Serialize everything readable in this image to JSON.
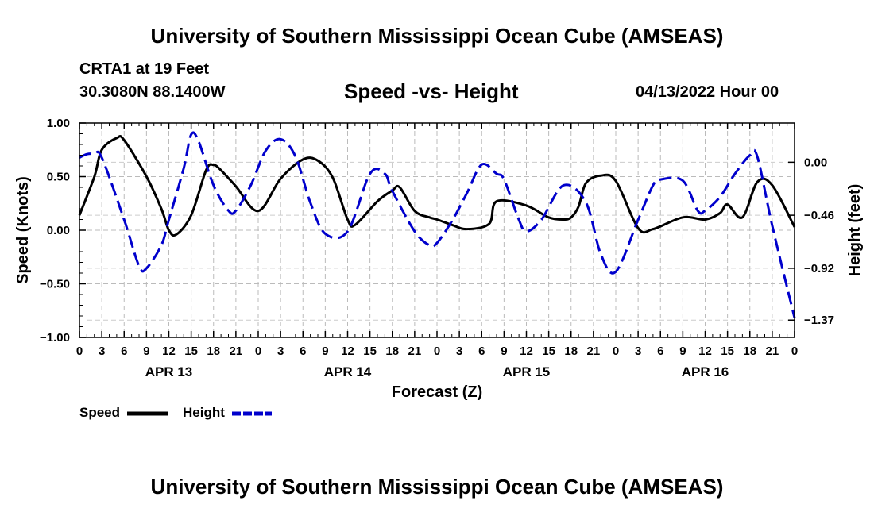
{
  "title": "University of Southern Mississippi Ocean Cube (AMSEAS)",
  "bottom_title": "University of Southern Mississippi Ocean Cube (AMSEAS)",
  "station": "CRTA1 at 19 Feet",
  "coordinates": "30.3080N  88.1400W",
  "plot_title": "Speed -vs- Height",
  "datetime": "04/13/2022 Hour 00",
  "chart_data": {
    "type": "line",
    "title": "Speed -vs- Height",
    "xlabel": "Forecast (Z)",
    "ylabel": "Speed (Knots)",
    "y2label": "Height (feet)",
    "xlim": [
      0,
      96
    ],
    "ylim": [
      -1.0,
      1.0
    ],
    "y2lim": [
      -1.52,
      0.34
    ],
    "grid": true,
    "x_ticks": [
      0,
      3,
      6,
      9,
      12,
      15,
      18,
      21,
      24,
      27,
      30,
      33,
      36,
      39,
      42,
      45,
      48,
      51,
      54,
      57,
      60,
      63,
      66,
      69,
      72,
      75,
      78,
      81,
      84,
      87,
      90,
      93,
      96
    ],
    "x_tick_labels": [
      "0",
      "3",
      "6",
      "9",
      "12",
      "15",
      "18",
      "21",
      "0",
      "3",
      "6",
      "9",
      "12",
      "15",
      "18",
      "21",
      "0",
      "3",
      "6",
      "9",
      "12",
      "15",
      "18",
      "21",
      "0",
      "3",
      "6",
      "9",
      "12",
      "15",
      "18",
      "21",
      "0"
    ],
    "date_labels": [
      {
        "x": 12,
        "label": "APR 13"
      },
      {
        "x": 36,
        "label": "APR 14"
      },
      {
        "x": 60,
        "label": "APR 15"
      },
      {
        "x": 84,
        "label": "APR 16"
      }
    ],
    "y_ticks": [
      -1.0,
      -0.5,
      0.0,
      0.5,
      1.0
    ],
    "y_tick_labels": [
      "−1.00",
      "−0.50",
      "0.00",
      "0.50",
      "1.00"
    ],
    "y2_ticks": [
      0.0,
      -0.46,
      -0.92,
      -1.37
    ],
    "y2_tick_labels": [
      "0.00",
      "−0.46",
      "−0.92",
      "−1.37"
    ],
    "legend": [
      {
        "name": "Speed",
        "color": "#000000",
        "dash": "solid"
      },
      {
        "name": "Height",
        "color": "#0000cc",
        "dash": "dashed"
      }
    ],
    "series": [
      {
        "name": "Speed",
        "axis": "left",
        "color": "#000000",
        "x": [
          0,
          2,
          3,
          5,
          6,
          9,
          11,
          12,
          13,
          15,
          17,
          18,
          19,
          21,
          24,
          27,
          30,
          32,
          34,
          36,
          37,
          40,
          42,
          43,
          45,
          47,
          48,
          50,
          52,
          55,
          56,
          60,
          63,
          65,
          66,
          67,
          68,
          70,
          72,
          75,
          77,
          81,
          84,
          86,
          87,
          89,
          91,
          93,
          96
        ],
        "y": [
          0.14,
          0.5,
          0.75,
          0.86,
          0.84,
          0.5,
          0.2,
          0.0,
          -0.04,
          0.14,
          0.56,
          0.61,
          0.56,
          0.41,
          0.18,
          0.48,
          0.66,
          0.65,
          0.49,
          0.1,
          0.05,
          0.27,
          0.37,
          0.4,
          0.18,
          0.12,
          0.1,
          0.05,
          0.01,
          0.06,
          0.27,
          0.23,
          0.12,
          0.1,
          0.12,
          0.22,
          0.44,
          0.51,
          0.46,
          0.02,
          0.01,
          0.12,
          0.1,
          0.16,
          0.24,
          0.12,
          0.45,
          0.42,
          0.03
        ]
      },
      {
        "name": "Height",
        "axis": "right",
        "color": "#0000cc",
        "x": [
          0,
          1,
          2,
          3,
          6,
          8,
          9,
          11,
          12,
          14,
          15,
          16,
          18,
          20,
          21,
          23,
          25,
          27,
          29,
          31,
          33,
          36,
          39,
          41,
          42,
          45,
          47,
          48,
          50,
          52,
          54,
          56,
          57,
          59,
          60,
          62,
          65,
          68,
          70,
          72,
          75,
          77,
          78,
          81,
          83,
          84,
          86,
          88,
          90,
          91,
          93,
          96
        ],
        "y": [
          0.04,
          0.07,
          0.07,
          0.04,
          -0.5,
          -0.9,
          -0.92,
          -0.72,
          -0.5,
          -0.05,
          0.24,
          0.18,
          -0.2,
          -0.42,
          -0.42,
          -0.2,
          0.1,
          0.2,
          0.05,
          -0.35,
          -0.62,
          -0.6,
          -0.1,
          -0.1,
          -0.25,
          -0.6,
          -0.72,
          -0.7,
          -0.51,
          -0.27,
          -0.02,
          -0.1,
          -0.15,
          -0.5,
          -0.6,
          -0.5,
          -0.2,
          -0.35,
          -0.8,
          -0.95,
          -0.5,
          -0.2,
          -0.15,
          -0.16,
          -0.42,
          -0.42,
          -0.3,
          -0.1,
          0.06,
          0.05,
          -0.55,
          -1.35
        ]
      }
    ]
  }
}
